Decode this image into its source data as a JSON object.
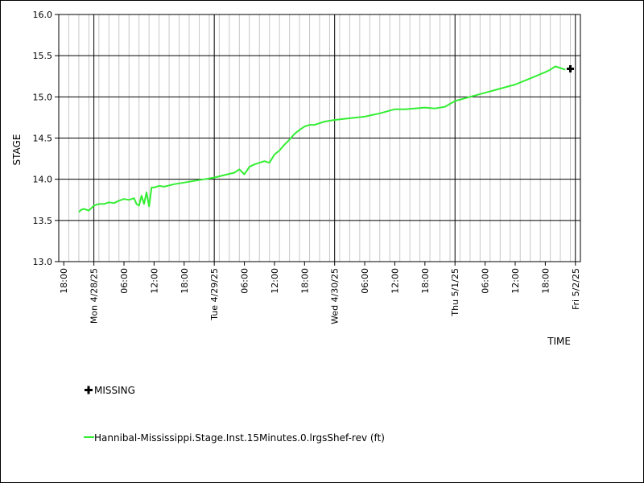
{
  "chart_data": {
    "type": "line",
    "title": "",
    "ylabel": "STAGE",
    "xlabel": "TIME",
    "ylim": [
      13.0,
      16.0
    ],
    "yticks": [
      "13.0",
      "13.5",
      "14.0",
      "14.5",
      "15.0",
      "15.5",
      "16.0"
    ],
    "xlim": [
      "2025-04-27T17:00",
      "2025-05-02T01:00"
    ],
    "xticks": [
      {
        "t": "2025-04-27T18:00",
        "label": "18:00",
        "major": false
      },
      {
        "t": "2025-04-28T00:00",
        "label": "Mon 4/28/25",
        "major": true
      },
      {
        "t": "2025-04-28T06:00",
        "label": "06:00",
        "major": false
      },
      {
        "t": "2025-04-28T12:00",
        "label": "12:00",
        "major": false
      },
      {
        "t": "2025-04-28T18:00",
        "label": "18:00",
        "major": false
      },
      {
        "t": "2025-04-29T00:00",
        "label": "Tue 4/29/25",
        "major": true
      },
      {
        "t": "2025-04-29T06:00",
        "label": "06:00",
        "major": false
      },
      {
        "t": "2025-04-29T12:00",
        "label": "12:00",
        "major": false
      },
      {
        "t": "2025-04-29T18:00",
        "label": "18:00",
        "major": false
      },
      {
        "t": "2025-04-30T00:00",
        "label": "Wed 4/30/25",
        "major": true
      },
      {
        "t": "2025-04-30T06:00",
        "label": "06:00",
        "major": false
      },
      {
        "t": "2025-04-30T12:00",
        "label": "12:00",
        "major": false
      },
      {
        "t": "2025-04-30T18:00",
        "label": "18:00",
        "major": false
      },
      {
        "t": "2025-05-01T00:00",
        "label": "Thu 5/1/25",
        "major": true
      },
      {
        "t": "2025-05-01T06:00",
        "label": "06:00",
        "major": false
      },
      {
        "t": "2025-05-01T12:00",
        "label": "12:00",
        "major": false
      },
      {
        "t": "2025-05-01T18:00",
        "label": "18:00",
        "major": false
      },
      {
        "t": "2025-05-02T00:00",
        "label": "Fri 5/2/25",
        "major": true
      }
    ],
    "series": [
      {
        "name": "Hannibal-Mississippi.Stage.Inst.15Minutes.0.lrgsShef-rev (ft)",
        "color": "#33ee33",
        "x": [
          "2025-04-27T21:00",
          "2025-04-27T21:30",
          "2025-04-27T22:00",
          "2025-04-27T23:00",
          "2025-04-28T00:00",
          "2025-04-28T00:30",
          "2025-04-28T01:00",
          "2025-04-28T02:00",
          "2025-04-28T03:00",
          "2025-04-28T04:00",
          "2025-04-28T05:00",
          "2025-04-28T06:00",
          "2025-04-28T07:00",
          "2025-04-28T08:00",
          "2025-04-28T08:30",
          "2025-04-28T09:00",
          "2025-04-28T09:30",
          "2025-04-28T10:00",
          "2025-04-28T10:30",
          "2025-04-28T11:00",
          "2025-04-28T11:30",
          "2025-04-28T12:00",
          "2025-04-28T13:00",
          "2025-04-28T14:00",
          "2025-04-28T16:00",
          "2025-04-28T18:00",
          "2025-04-28T20:00",
          "2025-04-28T22:00",
          "2025-04-29T00:00",
          "2025-04-29T02:00",
          "2025-04-29T04:00",
          "2025-04-29T05:00",
          "2025-04-29T06:00",
          "2025-04-29T07:00",
          "2025-04-29T08:00",
          "2025-04-29T10:00",
          "2025-04-29T11:00",
          "2025-04-29T12:00",
          "2025-04-29T13:00",
          "2025-04-29T14:00",
          "2025-04-29T15:00",
          "2025-04-29T16:00",
          "2025-04-29T17:00",
          "2025-04-29T18:00",
          "2025-04-29T19:00",
          "2025-04-29T20:00",
          "2025-04-29T22:00",
          "2025-04-30T00:00",
          "2025-04-30T03:00",
          "2025-04-30T06:00",
          "2025-04-30T09:00",
          "2025-04-30T12:00",
          "2025-04-30T14:00",
          "2025-04-30T16:00",
          "2025-04-30T18:00",
          "2025-04-30T20:00",
          "2025-04-30T22:00",
          "2025-05-01T00:00",
          "2025-05-01T03:00",
          "2025-05-01T06:00",
          "2025-05-01T09:00",
          "2025-05-01T12:00",
          "2025-05-01T14:00",
          "2025-05-01T16:00",
          "2025-05-01T18:00",
          "2025-05-01T19:00",
          "2025-05-01T20:00",
          "2025-05-01T21:00",
          "2025-05-01T22:00"
        ],
        "values": [
          13.6,
          13.63,
          13.64,
          13.62,
          13.68,
          13.69,
          13.7,
          13.7,
          13.72,
          13.71,
          13.74,
          13.76,
          13.75,
          13.77,
          13.7,
          13.68,
          13.8,
          13.7,
          13.84,
          13.67,
          13.9,
          13.9,
          13.92,
          13.91,
          13.94,
          13.96,
          13.98,
          14.0,
          14.02,
          14.05,
          14.08,
          14.12,
          14.06,
          14.15,
          14.18,
          14.22,
          14.2,
          14.3,
          14.35,
          14.42,
          14.48,
          14.55,
          14.6,
          14.64,
          14.66,
          14.66,
          14.7,
          14.72,
          14.74,
          14.76,
          14.8,
          14.85,
          14.85,
          14.86,
          14.87,
          14.86,
          14.88,
          14.95,
          15.0,
          15.05,
          15.1,
          15.15,
          15.2,
          15.25,
          15.3,
          15.33,
          15.37,
          15.35,
          15.33
        ]
      }
    ],
    "missing": {
      "name": "MISSING",
      "color": "#000000",
      "points": [
        {
          "x": "2025-05-01T23:00",
          "y": 15.34
        }
      ]
    },
    "grid": true,
    "legend_position": "bottom-left"
  }
}
